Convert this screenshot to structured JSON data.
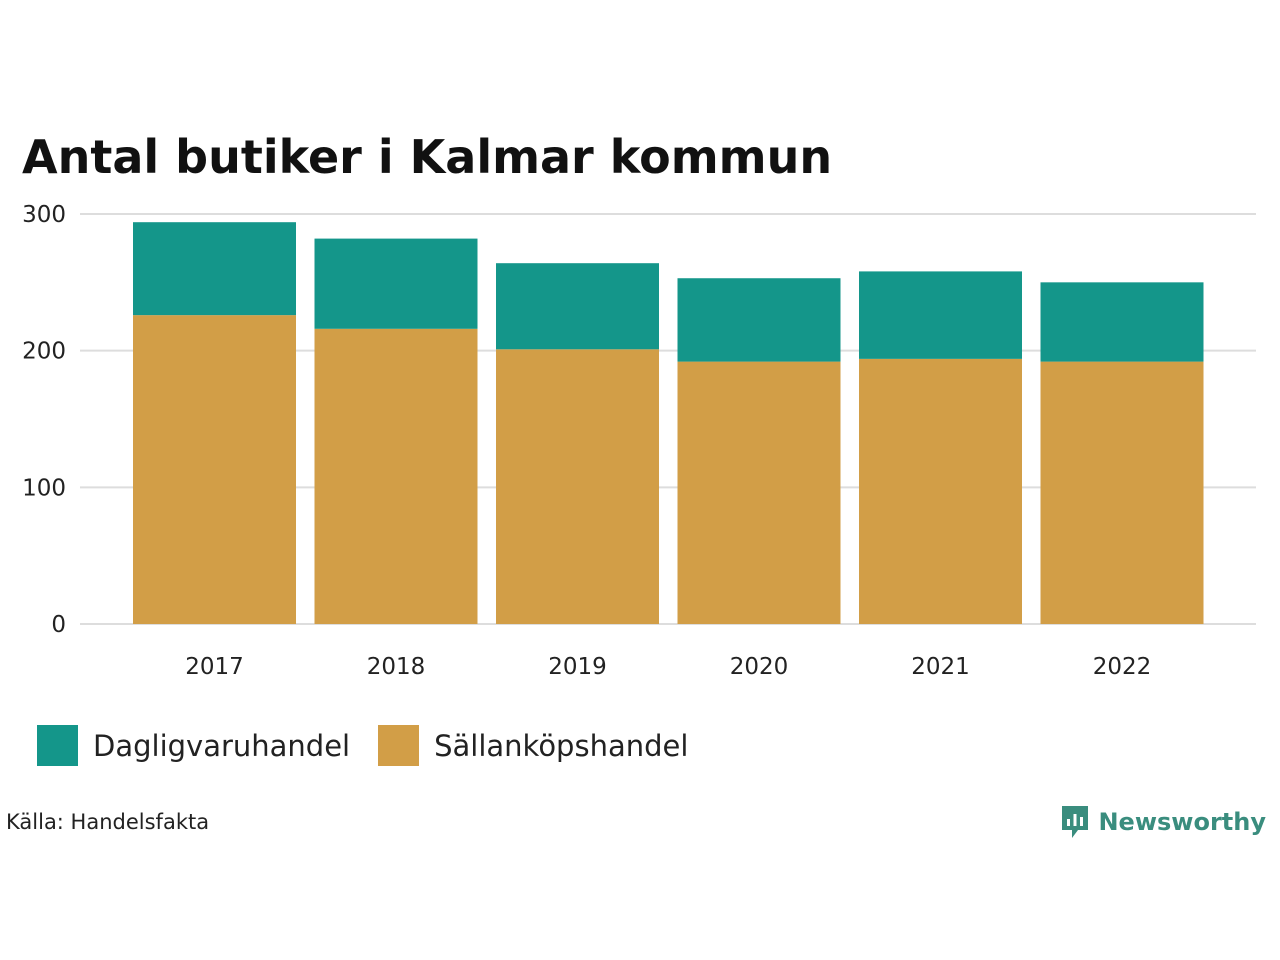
{
  "title": "Antal butiker i Kalmar kommun",
  "source": "Källa: Handelsfakta",
  "brand": {
    "name": "Newsworthy",
    "icon": "newsworthy-logo-icon"
  },
  "colors": {
    "Dagligvaruhandel": "#14968a",
    "Sällanköpshandel": "#d29e47",
    "grid": "#dddddd",
    "text": "#222222"
  },
  "chart_data": {
    "type": "bar",
    "stacked": true,
    "categories": [
      "2017",
      "2018",
      "2019",
      "2020",
      "2021",
      "2022"
    ],
    "series": [
      {
        "name": "Sällanköpshandel",
        "values": [
          226,
          216,
          201,
          192,
          194,
          192
        ]
      },
      {
        "name": "Dagligvaruhandel",
        "values": [
          68,
          66,
          63,
          61,
          64,
          58
        ]
      }
    ],
    "ylim": [
      0,
      300
    ],
    "yticks": [
      0,
      100,
      200,
      300
    ],
    "grid": true,
    "legend": "bottom-left",
    "xlabel": "",
    "ylabel": ""
  },
  "legend": [
    {
      "name": "Dagligvaruhandel"
    },
    {
      "name": "Sällanköpshandel"
    }
  ]
}
